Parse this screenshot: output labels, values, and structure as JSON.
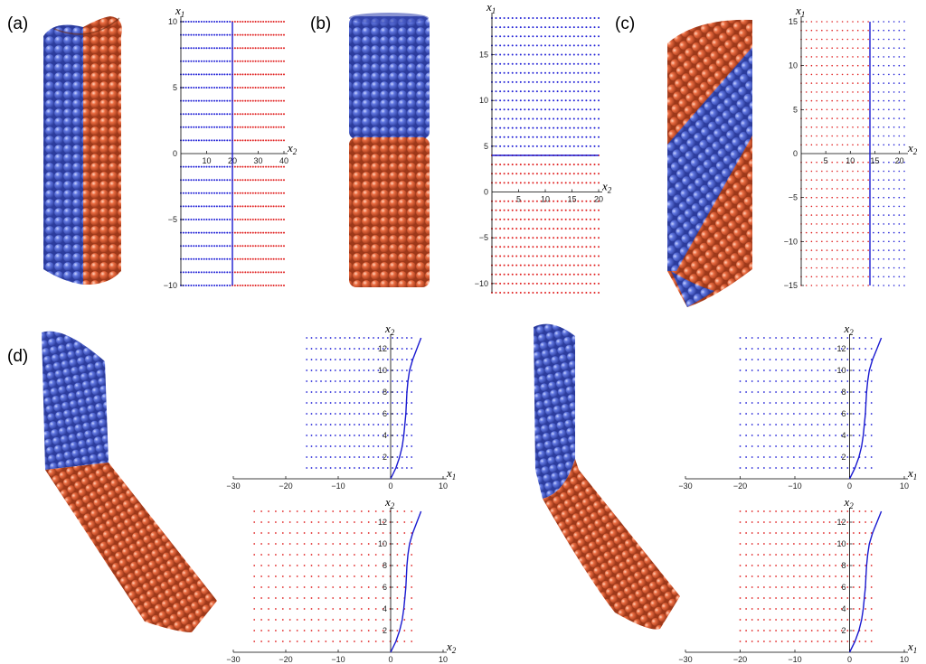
{
  "figure": {
    "panel_labels": [
      "(a)",
      "(b)",
      "(c)",
      "(d)"
    ],
    "colors": {
      "blue": "#1f1fd6",
      "red": "#e01f1f",
      "sphere_blue": "#4f68d6",
      "sphere_red": "#e8663c",
      "curve": "#1a1ad0"
    }
  },
  "chart_data": [
    {
      "id": "a",
      "type": "scatter",
      "xlabel": "x2",
      "ylabel": "x1",
      "xlim": [
        0,
        40
      ],
      "ylim": [
        -10,
        10
      ],
      "xticks": [
        10,
        20,
        30,
        40
      ],
      "xtick_labels": [
        "10",
        "20",
        "30",
        "40"
      ],
      "yticks": [
        -10,
        -5,
        0,
        5,
        10
      ],
      "ytick_labels": [
        "−10",
        "−5",
        "0",
        "5",
        "10"
      ],
      "rows": [
        -10,
        -9,
        -8,
        -7,
        -6,
        -5,
        -4,
        -3,
        -2,
        -1,
        1,
        2,
        3,
        4,
        5,
        6,
        7,
        8,
        9,
        10
      ],
      "blue_region": [
        0,
        20
      ],
      "red_region": [
        20,
        40
      ],
      "boundary": {
        "type": "vertical",
        "x": 20
      }
    },
    {
      "id": "b",
      "type": "scatter",
      "xlabel": "x2",
      "ylabel": "x1",
      "xlim": [
        0,
        20
      ],
      "ylim": [
        -11,
        19
      ],
      "xticks": [
        5,
        10,
        15,
        20
      ],
      "xtick_labels": [
        "5",
        "10",
        "15",
        "20"
      ],
      "yticks": [
        -10,
        -5,
        0,
        5,
        10,
        15
      ],
      "ytick_labels": [
        "−10",
        "−5",
        "0",
        "5",
        "10",
        "15"
      ],
      "rows": [
        -11,
        -10,
        -9,
        -8,
        -7,
        -6,
        -5,
        -4,
        -3,
        -2,
        -1,
        1,
        2,
        3,
        4,
        5,
        6,
        7,
        8,
        9,
        10,
        11,
        12,
        13,
        14,
        15,
        16,
        17,
        18,
        19
      ],
      "blue_above": 4,
      "boundary": {
        "type": "horizontal",
        "y": 4
      }
    },
    {
      "id": "c",
      "type": "scatter",
      "xlabel": "x2",
      "ylabel": "x1",
      "xlim": [
        0,
        21
      ],
      "ylim": [
        -15,
        15
      ],
      "xticks": [
        5,
        10,
        15,
        20
      ],
      "xtick_labels": [
        "5",
        "10",
        "15",
        "20"
      ],
      "yticks": [
        -15,
        -10,
        -5,
        0,
        5,
        10,
        15
      ],
      "ytick_labels": [
        "−15",
        "−10",
        "−5",
        "0",
        "5",
        "10",
        "15"
      ],
      "rows": [
        -15,
        -14,
        -13,
        -12,
        -11,
        -10,
        -9,
        -8,
        -7,
        -6,
        -5,
        -4,
        -3,
        -2,
        -1,
        1,
        2,
        3,
        4,
        5,
        6,
        7,
        8,
        9,
        10,
        11,
        12,
        13,
        14,
        15
      ],
      "blue_right_of": 14,
      "boundary": {
        "type": "vertical",
        "x": 14
      }
    },
    {
      "id": "d1",
      "type": "scatter",
      "color": "blue",
      "xlabel": "x1",
      "ylabel": "x2",
      "xlim": [
        -30,
        10
      ],
      "ylim": [
        0,
        13
      ],
      "xticks": [
        -30,
        -20,
        -10,
        0,
        10
      ],
      "xtick_labels": [
        "−30",
        "−20",
        "−10",
        "0",
        "10"
      ],
      "yticks": [
        2,
        4,
        6,
        8,
        10,
        12
      ],
      "ytick_labels": [
        "2",
        "4",
        "6",
        "8",
        "10",
        "12"
      ],
      "points_x_range": [
        -16,
        4
      ],
      "rows": [
        1,
        2,
        3,
        4,
        5,
        6,
        7,
        8,
        9,
        10,
        11,
        12,
        13
      ],
      "curve": [
        [
          0,
          0
        ],
        [
          1,
          1
        ],
        [
          1.7,
          2
        ],
        [
          2.2,
          3
        ],
        [
          2.5,
          4
        ],
        [
          2.7,
          5
        ],
        [
          2.9,
          6
        ],
        [
          3,
          7
        ],
        [
          3.1,
          8
        ],
        [
          3.3,
          9
        ],
        [
          3.6,
          10
        ],
        [
          4.2,
          11
        ],
        [
          5,
          12
        ],
        [
          5.8,
          13
        ]
      ]
    },
    {
      "id": "d2",
      "type": "scatter",
      "color": "red",
      "xlabel": "x2",
      "ylabel": "x2",
      "xlim": [
        -30,
        10
      ],
      "ylim": [
        0,
        13
      ],
      "xticks": [
        -30,
        -20,
        -10,
        0,
        10
      ],
      "xtick_labels": [
        "−30",
        "−20",
        "−10",
        "0",
        "10"
      ],
      "yticks": [
        2,
        4,
        6,
        8,
        10,
        12
      ],
      "ytick_labels": [
        "2",
        "4",
        "6",
        "8",
        "10",
        "12"
      ],
      "points_x_range": [
        -26,
        4
      ],
      "rows": [
        1,
        2,
        3,
        4,
        5,
        6,
        7,
        8,
        9,
        10,
        11,
        12,
        13
      ],
      "curve": [
        [
          0,
          0
        ],
        [
          1,
          1
        ],
        [
          1.7,
          2
        ],
        [
          2.2,
          3
        ],
        [
          2.5,
          4
        ],
        [
          2.7,
          5
        ],
        [
          2.9,
          6
        ],
        [
          3,
          7
        ],
        [
          3.1,
          8
        ],
        [
          3.3,
          9
        ],
        [
          3.6,
          10
        ],
        [
          4.2,
          11
        ],
        [
          5,
          12
        ],
        [
          5.8,
          13
        ]
      ]
    },
    {
      "id": "d3",
      "type": "scatter",
      "color": "blue",
      "xlabel": "x1",
      "ylabel": "x2",
      "xlim": [
        -30,
        10
      ],
      "ylim": [
        0,
        13
      ],
      "xticks": [
        -30,
        -20,
        -10,
        0,
        10
      ],
      "xtick_labels": [
        "−30",
        "−20",
        "−10",
        "0",
        "10"
      ],
      "yticks": [
        2,
        4,
        6,
        8,
        10,
        12
      ],
      "ytick_labels": [
        "2",
        "4",
        "6",
        "8",
        "10",
        "12"
      ],
      "points_x_range": [
        -20,
        4
      ],
      "rows": [
        1,
        2,
        3,
        4,
        5,
        6,
        7,
        8,
        9,
        10,
        11,
        12,
        13
      ],
      "curve": [
        [
          0,
          0
        ],
        [
          1,
          1
        ],
        [
          1.7,
          2
        ],
        [
          2.2,
          3
        ],
        [
          2.5,
          4
        ],
        [
          2.7,
          5
        ],
        [
          2.9,
          6
        ],
        [
          3,
          7
        ],
        [
          3.1,
          8
        ],
        [
          3.3,
          9
        ],
        [
          3.6,
          10
        ],
        [
          4.2,
          11
        ],
        [
          5,
          12
        ],
        [
          5.8,
          13
        ]
      ]
    },
    {
      "id": "d4",
      "type": "scatter",
      "color": "red",
      "xlabel": "x1",
      "ylabel": "x2",
      "xlim": [
        -30,
        10
      ],
      "ylim": [
        0,
        13
      ],
      "xticks": [
        -30,
        -20,
        -10,
        0,
        10
      ],
      "xtick_labels": [
        "−30",
        "−20",
        "−10",
        "0",
        "10"
      ],
      "yticks": [
        2,
        4,
        6,
        8,
        10,
        12
      ],
      "ytick_labels": [
        "2",
        "4",
        "6",
        "8",
        "10",
        "12"
      ],
      "points_x_range": [
        -20,
        4
      ],
      "rows": [
        1,
        2,
        3,
        4,
        5,
        6,
        7,
        8,
        9,
        10,
        11,
        12,
        13
      ],
      "curve": [
        [
          0,
          0
        ],
        [
          1,
          1
        ],
        [
          1.7,
          2
        ],
        [
          2.2,
          3
        ],
        [
          2.5,
          4
        ],
        [
          2.7,
          5
        ],
        [
          2.9,
          6
        ],
        [
          3,
          7
        ],
        [
          3.1,
          8
        ],
        [
          3.3,
          9
        ],
        [
          3.6,
          10
        ],
        [
          4.2,
          11
        ],
        [
          5,
          12
        ],
        [
          5.8,
          13
        ]
      ]
    }
  ]
}
